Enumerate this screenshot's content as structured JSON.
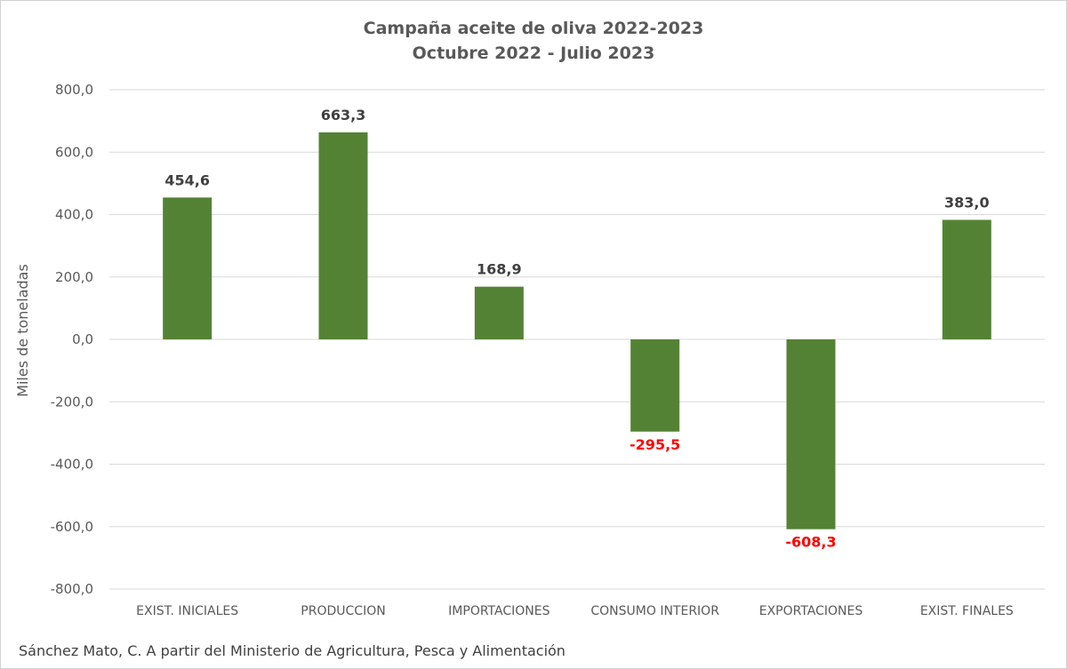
{
  "chart_data": {
    "type": "bar",
    "title": "Campaña aceite de oliva 2022-2023",
    "subtitle": "Octubre 2022 - Julio 2023",
    "ylabel": "Miles de toneladas",
    "xlabel": "",
    "ylim": [
      -800,
      800
    ],
    "ytick_step": 200,
    "ytick_labels": [
      "800,0",
      "600,0",
      "400,0",
      "200,0",
      "0,0",
      "-200,0",
      "-400,0",
      "-600,0",
      "-800,0"
    ],
    "ytick_values": [
      800,
      600,
      400,
      200,
      0,
      -200,
      -400,
      -600,
      -800
    ],
    "categories": [
      "EXIST. INICIALES",
      "PRODUCCION",
      "IMPORTACIONES",
      "CONSUMO INTERIOR",
      "EXPORTACIONES",
      "EXIST. FINALES"
    ],
    "values": [
      454.6,
      663.3,
      168.9,
      -295.5,
      -608.3,
      383.0
    ],
    "data_labels": [
      "454,6",
      "663,3",
      "168,9",
      "-295,5",
      "-608,3",
      "383,0"
    ],
    "grid": true,
    "bar_color": "#548235",
    "positive_label_color": "#404040",
    "negative_label_color": "#ff0000",
    "gridline_color": "#d9d9d9",
    "axis_text_color": "#595959"
  },
  "source_note": "Sánchez Mato, C.  A partir del Ministerio de Agricultura, Pesca y Alimentación"
}
